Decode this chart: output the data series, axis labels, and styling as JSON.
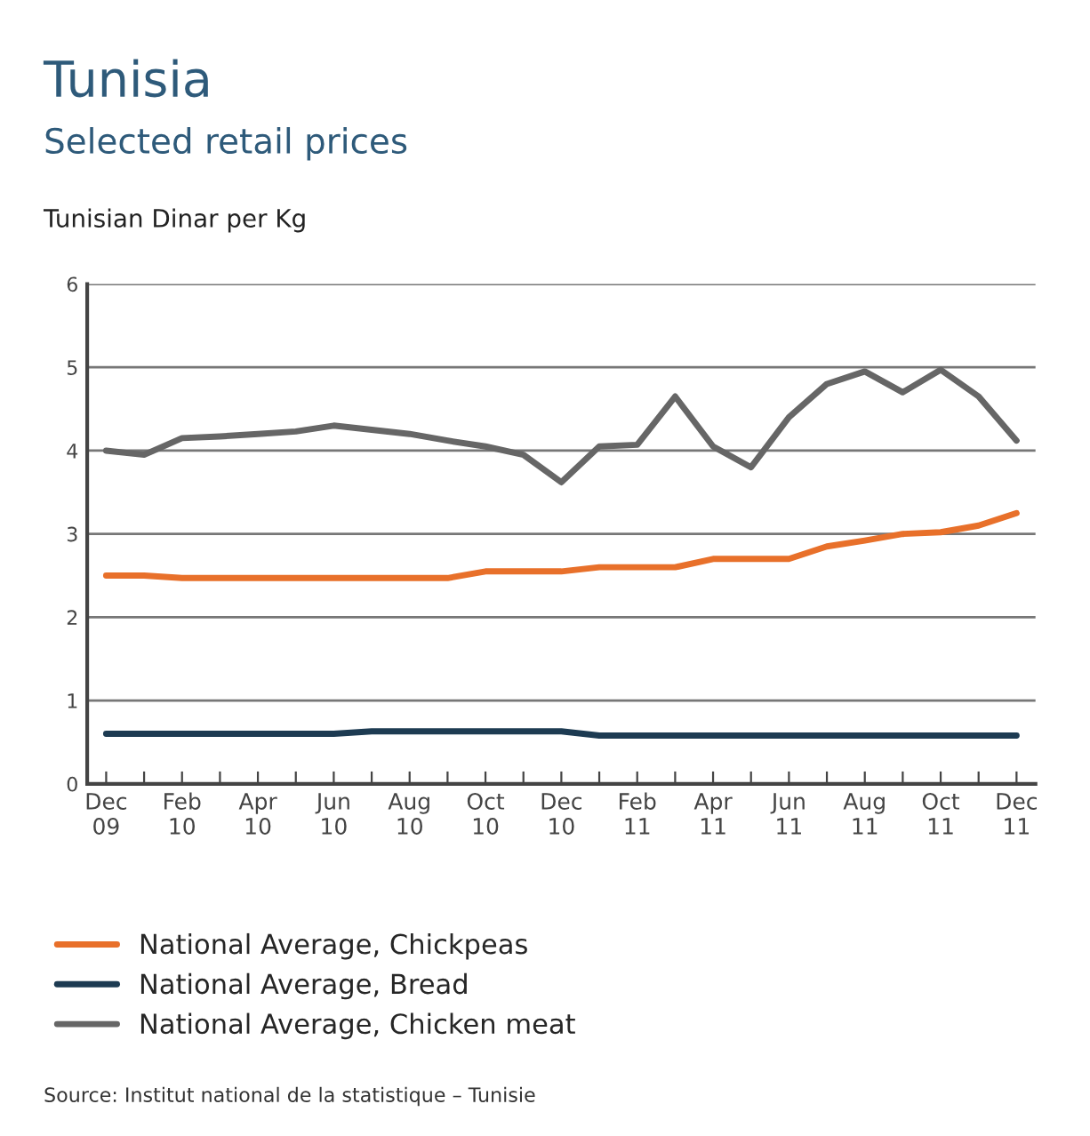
{
  "chart_data": {
    "type": "line",
    "title": "Tunisia",
    "subtitle": "Selected retail prices",
    "ylabel": "Tunisian Dinar per Kg",
    "categories": [
      "Dec\n09",
      null,
      "Feb\n10",
      null,
      "Apr\n10",
      null,
      "Jun\n10",
      null,
      "Aug\n10",
      null,
      "Oct\n10",
      null,
      "Dec\n10",
      null,
      "Feb\n11",
      null,
      "Apr\n11",
      null,
      "Jun\n11",
      null,
      "Aug\n11",
      null,
      "Oct\n11",
      null,
      "Dec\n11"
    ],
    "series": [
      {
        "name": "National Average, Chickpeas",
        "color": "#e8702a",
        "values": [
          2.5,
          2.5,
          2.47,
          2.47,
          2.47,
          2.47,
          2.47,
          2.47,
          2.47,
          2.47,
          2.55,
          2.55,
          2.55,
          2.6,
          2.6,
          2.6,
          2.7,
          2.7,
          2.7,
          2.85,
          2.92,
          3.0,
          3.02,
          3.1,
          3.25
        ]
      },
      {
        "name": "National Average, Bread",
        "color": "#1d3b52",
        "values": [
          0.6,
          0.6,
          0.6,
          0.6,
          0.6,
          0.6,
          0.6,
          0.63,
          0.63,
          0.63,
          0.63,
          0.63,
          0.63,
          0.58,
          0.58,
          0.58,
          0.58,
          0.58,
          0.58,
          0.58,
          0.58,
          0.58,
          0.58,
          0.58,
          0.58
        ]
      },
      {
        "name": "National Average, Chicken meat",
        "color": "#666666",
        "values": [
          4.0,
          3.95,
          4.15,
          4.17,
          4.2,
          4.23,
          4.3,
          4.25,
          4.2,
          4.12,
          4.05,
          3.95,
          3.62,
          4.05,
          4.07,
          4.65,
          4.05,
          3.8,
          4.4,
          4.8,
          4.95,
          4.7,
          4.97,
          4.65,
          4.12
        ]
      }
    ],
    "ylim": [
      0,
      6
    ],
    "yticks": [
      0,
      1,
      2,
      3,
      4,
      5,
      6
    ],
    "grid": "y",
    "legend": "bottom",
    "annotations": [
      "Source: Institut national de la statistique – Tunisie"
    ]
  }
}
